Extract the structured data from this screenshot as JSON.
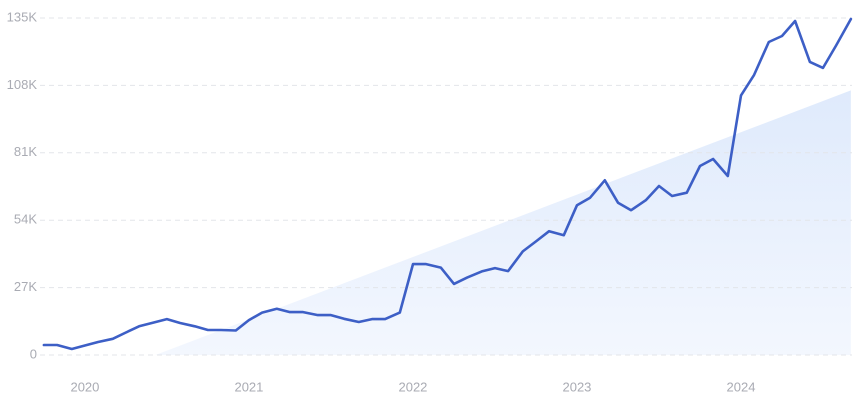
{
  "chart_data": {
    "type": "line",
    "color": "#3d5fc6",
    "trend_color": "#e3eefc",
    "grid": true,
    "x": [
      2019.75,
      2019.83,
      2019.92,
      2020.0,
      2020.08,
      2020.17,
      2020.25,
      2020.33,
      2020.42,
      2020.5,
      2020.58,
      2020.67,
      2020.75,
      2020.83,
      2020.92,
      2021.0,
      2021.08,
      2021.17,
      2021.25,
      2021.33,
      2021.42,
      2021.5,
      2021.58,
      2021.67,
      2021.75,
      2021.83,
      2021.92,
      2022.0,
      2022.08,
      2022.17,
      2022.25,
      2022.33,
      2022.42,
      2022.5,
      2022.58,
      2022.67,
      2022.75,
      2022.83,
      2022.92,
      2023.0,
      2023.08,
      2023.17,
      2023.25,
      2023.33,
      2023.42,
      2023.5,
      2023.58,
      2023.67,
      2023.75,
      2023.83,
      2023.92,
      2024.0,
      2024.08,
      2024.17,
      2024.25,
      2024.33,
      2024.42,
      2024.5,
      2024.58,
      2024.67
    ],
    "values": [
      4000,
      4000,
      2400,
      3800,
      5200,
      6500,
      9000,
      11500,
      13000,
      14400,
      12800,
      11500,
      10000,
      10000,
      9800,
      14000,
      17000,
      18500,
      17200,
      17200,
      16000,
      16000,
      14500,
      13200,
      14400,
      14400,
      17000,
      36400,
      36400,
      35000,
      28500,
      31000,
      33500,
      34800,
      33600,
      41500,
      45500,
      49600,
      48000,
      60000,
      63000,
      70000,
      61000,
      58000,
      62000,
      67700,
      63700,
      65000,
      75700,
      78500,
      71700,
      104000,
      112200,
      125400,
      127800,
      133800,
      117400,
      115000,
      124000,
      134600
    ],
    "trend": {
      "x": [
        2020.43,
        2024.67
      ],
      "values": [
        0,
        106000
      ]
    },
    "xlim": [
      2019.726,
      2024.677
    ],
    "xticks": [
      2020,
      2021,
      2022,
      2023,
      2024
    ],
    "ylim": [
      0,
      135000
    ],
    "yticks": [
      0,
      {
        "value": 27000,
        "label": "27K"
      },
      {
        "value": 54000,
        "label": "54K"
      },
      {
        "value": 81000,
        "label": "81K"
      },
      {
        "value": 108000,
        "label": "108K"
      },
      {
        "value": 135000,
        "label": "135K"
      }
    ]
  }
}
